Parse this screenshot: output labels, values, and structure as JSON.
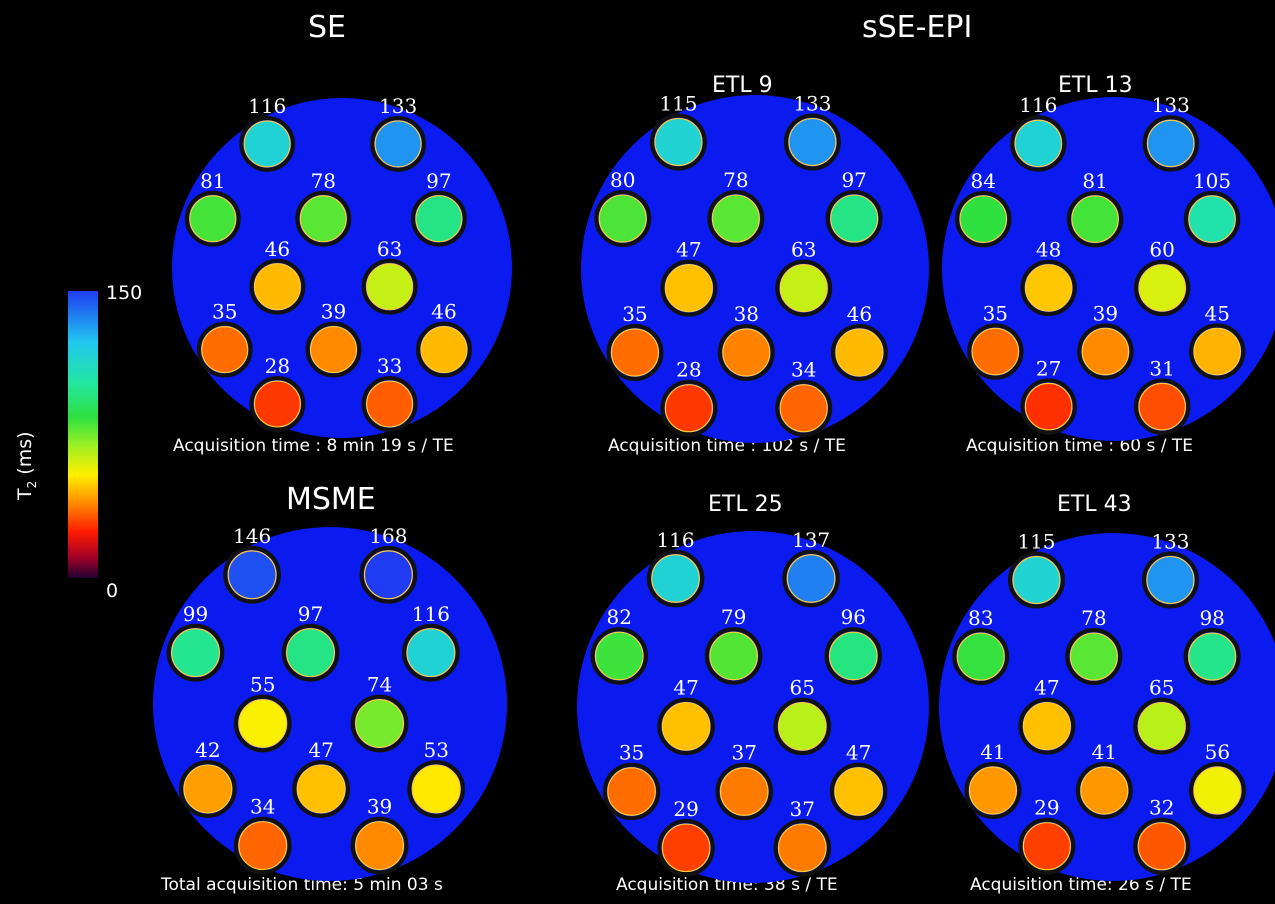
{
  "titles": {
    "se": "SE",
    "ssepi": "sSE-EPI",
    "msme": "MSME",
    "etl9": "ETL 9",
    "etl13": "ETL 13",
    "etl25": "ETL 25",
    "etl43": "ETL 43"
  },
  "captions": {
    "se": "Acquisition time : 8 min 19 s / TE",
    "etl9": "Acquisition time : 102 s / TE",
    "etl13": "Acquisition time : 60 s / TE",
    "msme": "Total acquisition time: 5 min 03 s",
    "etl25": "Acquisition time: 38 s / TE",
    "etl43": "Acquisition time: 26 s / TE"
  },
  "colorbar": {
    "max_label": "150",
    "min_label": "0",
    "axis_prefix": "T",
    "axis_sub": "2",
    "axis_suffix": " (ms)",
    "min_value": 0,
    "max_value": 150
  },
  "panels": [
    {
      "id": "se",
      "values": [
        116,
        133,
        81,
        78,
        97,
        46,
        63,
        35,
        39,
        46,
        28,
        33
      ]
    },
    {
      "id": "etl9",
      "values": [
        115,
        133,
        80,
        78,
        97,
        47,
        63,
        35,
        38,
        46,
        28,
        34
      ]
    },
    {
      "id": "etl13",
      "values": [
        116,
        133,
        84,
        81,
        105,
        48,
        60,
        35,
        39,
        45,
        27,
        31
      ]
    },
    {
      "id": "msme",
      "values": [
        146,
        168,
        99,
        97,
        116,
        55,
        74,
        42,
        47,
        53,
        34,
        39
      ]
    },
    {
      "id": "etl25",
      "values": [
        116,
        137,
        82,
        79,
        96,
        47,
        65,
        35,
        37,
        47,
        29,
        37
      ]
    },
    {
      "id": "etl43",
      "values": [
        115,
        133,
        83,
        78,
        98,
        47,
        65,
        41,
        41,
        56,
        29,
        32
      ]
    }
  ]
}
